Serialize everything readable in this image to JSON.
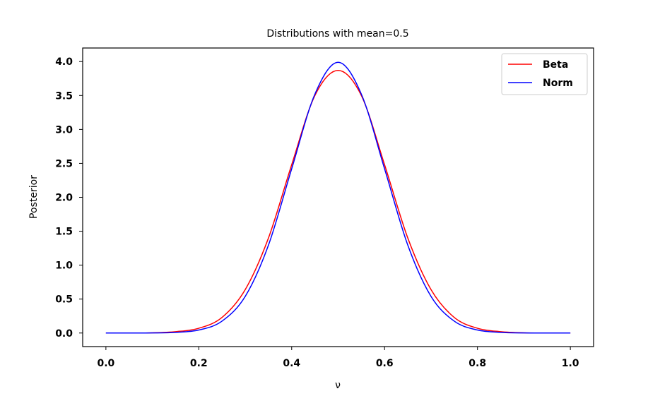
{
  "chart_data": {
    "type": "line",
    "title": "Distributions with mean=0.5",
    "xlabel": "ν",
    "ylabel": "Posterior",
    "xlim": [
      -0.05,
      1.05
    ],
    "ylim": [
      -0.2,
      4.2
    ],
    "xticks": [
      0.0,
      0.2,
      0.4,
      0.6,
      0.8,
      1.0
    ],
    "xtick_labels": [
      "0.0",
      "0.2",
      "0.4",
      "0.6",
      "0.8",
      "1.0"
    ],
    "yticks": [
      0.0,
      0.5,
      1.0,
      1.5,
      2.0,
      2.5,
      3.0,
      3.5,
      4.0
    ],
    "ytick_labels": [
      "0.0",
      "0.5",
      "1.0",
      "1.5",
      "2.0",
      "2.5",
      "3.0",
      "3.5",
      "4.0"
    ],
    "grid": false,
    "legend_position": "top-right",
    "series": [
      {
        "name": "Beta",
        "color": "#ff0000",
        "x": [
          0.0,
          0.05,
          0.1,
          0.15,
          0.2,
          0.25,
          0.3,
          0.35,
          0.4,
          0.45,
          0.5,
          0.55,
          0.6,
          0.65,
          0.7,
          0.75,
          0.8,
          0.85,
          0.9,
          0.95,
          1.0
        ],
        "y": [
          0.0,
          0.0,
          0.003,
          0.02,
          0.07,
          0.23,
          0.64,
          1.4,
          2.48,
          3.5,
          3.87,
          3.5,
          2.48,
          1.4,
          0.64,
          0.23,
          0.07,
          0.02,
          0.003,
          0.0,
          0.0
        ]
      },
      {
        "name": "Norm",
        "color": "#0000ff",
        "x": [
          0.0,
          0.05,
          0.1,
          0.15,
          0.2,
          0.25,
          0.3,
          0.35,
          0.4,
          0.45,
          0.5,
          0.55,
          0.6,
          0.65,
          0.7,
          0.75,
          0.8,
          0.85,
          0.9,
          0.95,
          1.0
        ],
        "y": [
          0.0,
          0.0,
          0.001,
          0.009,
          0.044,
          0.175,
          0.54,
          1.295,
          2.42,
          3.52,
          3.99,
          3.52,
          2.42,
          1.295,
          0.54,
          0.175,
          0.044,
          0.009,
          0.001,
          0.0,
          0.0
        ]
      }
    ]
  }
}
